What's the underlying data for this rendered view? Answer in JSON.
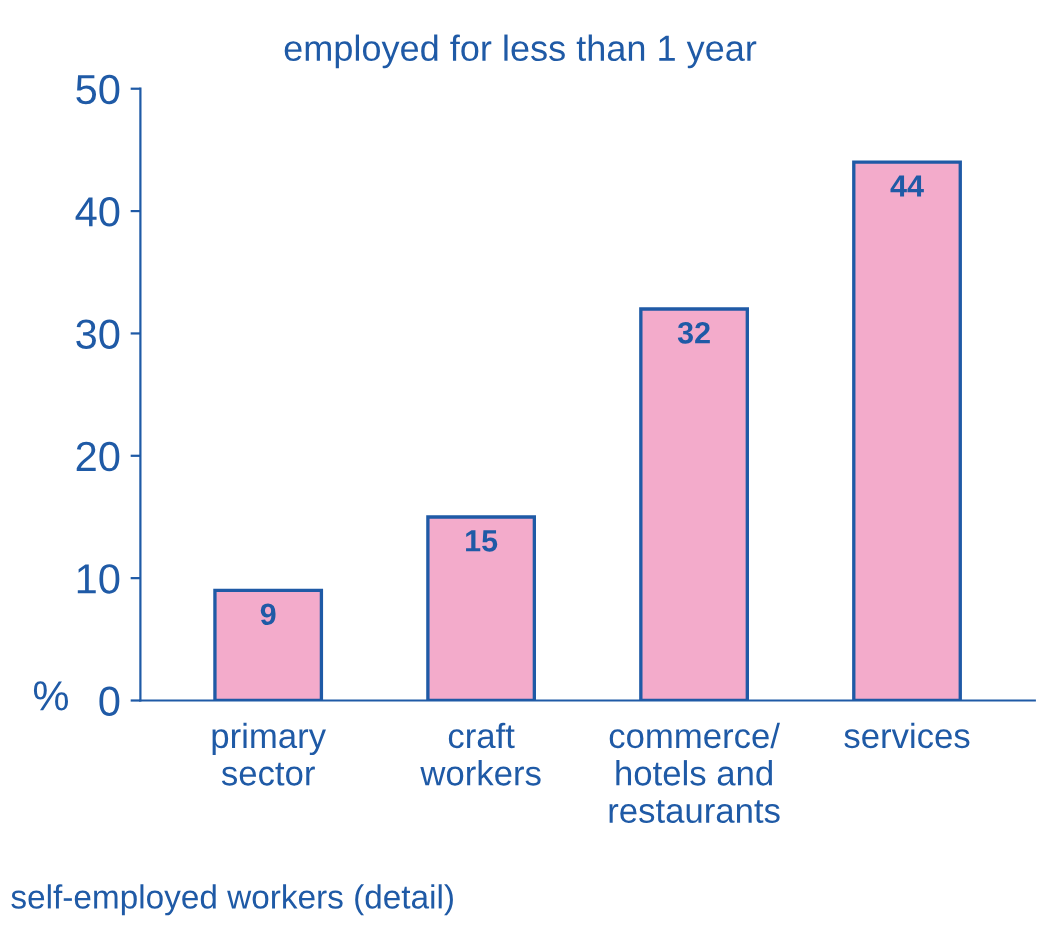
{
  "chart_data": {
    "type": "bar",
    "title": "employed for less than 1 year",
    "ylabel": "%",
    "categories": [
      "primary\nsector",
      "craft\nworkers",
      "commerce/\nhotels and\nrestaurants",
      "services"
    ],
    "values": [
      9,
      15,
      32,
      44
    ],
    "color": "#f3abcb",
    "ylim": [
      0,
      50
    ],
    "yticks": [
      0,
      10,
      20,
      30,
      40,
      50
    ],
    "grid": false,
    "data_labels": true,
    "annotations": [
      "self-employed workers (detail)"
    ]
  }
}
